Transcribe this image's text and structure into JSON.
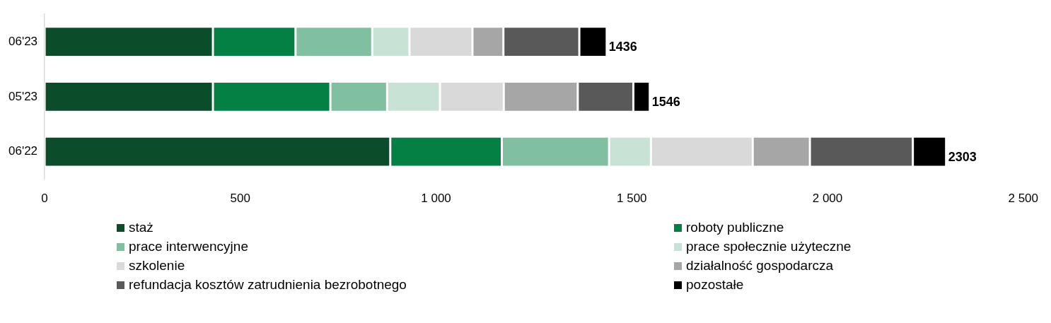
{
  "chart_data": {
    "type": "bar",
    "orientation": "horizontal",
    "stacked": true,
    "categories": [
      "06'23",
      "05'23",
      "06'22"
    ],
    "series": [
      {
        "name": "staż",
        "color": "#0b4d2b",
        "values": [
          430,
          430,
          883
        ]
      },
      {
        "name": "roboty publiczne",
        "color": "#058044",
        "values": [
          211,
          300,
          285
        ]
      },
      {
        "name": "prace interwencyjne",
        "color": "#80bf9f",
        "values": [
          196,
          145,
          274
        ]
      },
      {
        "name": "prace społecznie użyteczne",
        "color": "#c8e3d5",
        "values": [
          95,
          135,
          107
        ]
      },
      {
        "name": "szkolenie",
        "color": "#d9d9d9",
        "values": [
          161,
          163,
          260
        ]
      },
      {
        "name": "działalność gospodarcza",
        "color": "#a6a6a6",
        "values": [
          79,
          189,
          146
        ]
      },
      {
        "name": "refundacja kosztów zatrudnienia bezrobotnego",
        "color": "#595959",
        "values": [
          194,
          142,
          263
        ]
      },
      {
        "name": "pozostałe",
        "color": "#000000",
        "values": [
          70,
          42,
          85
        ]
      }
    ],
    "totals": [
      "1436",
      "1546",
      "2303"
    ],
    "xlim": [
      0,
      2500
    ],
    "xticks": [
      0,
      500,
      {
        "value": 1000,
        "label": "1 000"
      },
      {
        "value": 1500,
        "label": "1 500"
      },
      {
        "value": 2000,
        "label": "2 000"
      },
      {
        "value": 2500,
        "label": "2 500"
      }
    ],
    "grid": false,
    "legend": "bottom"
  }
}
